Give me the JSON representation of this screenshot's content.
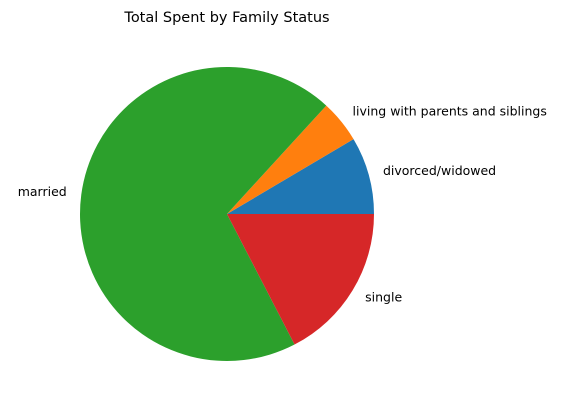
{
  "chart_data": {
    "type": "pie",
    "title": "Total Spent by Family Status",
    "categories": [
      "divorced/widowed",
      "living with parents and siblings",
      "married",
      "single"
    ],
    "values": [
      8.5,
      4.7,
      69.4,
      17.4
    ],
    "colors": [
      "#1f77b4",
      "#ff7f0e",
      "#2ca02c",
      "#d62728"
    ],
    "start_angle_deg": 0,
    "direction": "counterclockwise"
  }
}
